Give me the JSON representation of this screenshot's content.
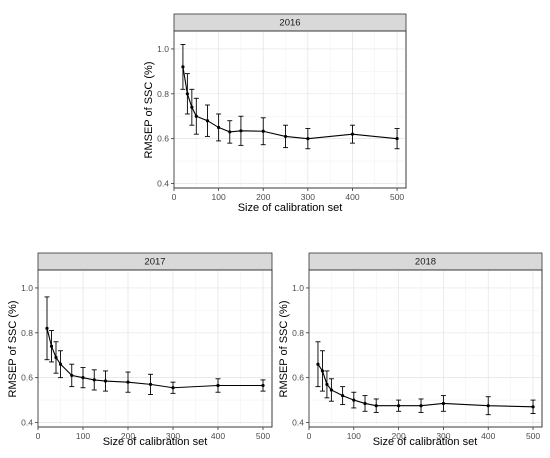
{
  "chart_data": [
    {
      "type": "line",
      "facet": "2016",
      "xlabel": "Size of calibration set",
      "ylabel": "RMSEP of SSC (%)",
      "xlim": [
        0,
        520
      ],
      "ylim": [
        0.38,
        1.08
      ],
      "xticks": [
        0,
        100,
        200,
        300,
        400,
        500
      ],
      "yticks": [
        0.4,
        0.6,
        0.8,
        1.0
      ],
      "ytick_labels": [
        "0.4",
        "0.6",
        "0.8",
        "1.0"
      ],
      "grid": true,
      "x": [
        20,
        30,
        40,
        50,
        75,
        100,
        125,
        150,
        200,
        250,
        300,
        400,
        500
      ],
      "y": [
        0.92,
        0.8,
        0.74,
        0.7,
        0.68,
        0.65,
        0.63,
        0.635,
        0.633,
        0.61,
        0.6,
        0.62,
        0.6
      ],
      "err": [
        0.1,
        0.09,
        0.08,
        0.08,
        0.07,
        0.06,
        0.05,
        0.065,
        0.06,
        0.05,
        0.045,
        0.04,
        0.045
      ]
    },
    {
      "type": "line",
      "facet": "2017",
      "xlabel": "Size of calibration set",
      "ylabel": "RMSEP of SSC (%)",
      "xlim": [
        0,
        520
      ],
      "ylim": [
        0.38,
        1.08
      ],
      "xticks": [
        0,
        100,
        200,
        300,
        400,
        500
      ],
      "yticks": [
        0.4,
        0.6,
        0.8,
        1.0
      ],
      "ytick_labels": [
        "0.4",
        "0.6",
        "0.8",
        "1.0"
      ],
      "grid": true,
      "x": [
        20,
        30,
        40,
        50,
        75,
        100,
        125,
        150,
        200,
        250,
        300,
        400,
        500
      ],
      "y": [
        0.82,
        0.74,
        0.69,
        0.66,
        0.61,
        0.6,
        0.59,
        0.585,
        0.58,
        0.57,
        0.555,
        0.565,
        0.565
      ],
      "err": [
        0.14,
        0.07,
        0.07,
        0.06,
        0.05,
        0.045,
        0.045,
        0.045,
        0.045,
        0.045,
        0.025,
        0.03,
        0.025
      ]
    },
    {
      "type": "line",
      "facet": "2018",
      "xlabel": "Size of calibration set",
      "ylabel": "RMSEP of SSC (%)",
      "xlim": [
        0,
        520
      ],
      "ylim": [
        0.38,
        1.08
      ],
      "xticks": [
        0,
        100,
        200,
        300,
        400,
        500
      ],
      "yticks": [
        0.4,
        0.6,
        0.8,
        1.0
      ],
      "ytick_labels": [
        "0.4",
        "0.6",
        "0.8",
        "1.0"
      ],
      "grid": true,
      "x": [
        20,
        30,
        40,
        50,
        75,
        100,
        125,
        150,
        200,
        250,
        300,
        400,
        500
      ],
      "y": [
        0.66,
        0.63,
        0.57,
        0.545,
        0.52,
        0.5,
        0.485,
        0.475,
        0.475,
        0.475,
        0.485,
        0.475,
        0.47
      ],
      "err": [
        0.1,
        0.09,
        0.06,
        0.05,
        0.04,
        0.035,
        0.035,
        0.03,
        0.025,
        0.03,
        0.035,
        0.04,
        0.03
      ]
    }
  ]
}
